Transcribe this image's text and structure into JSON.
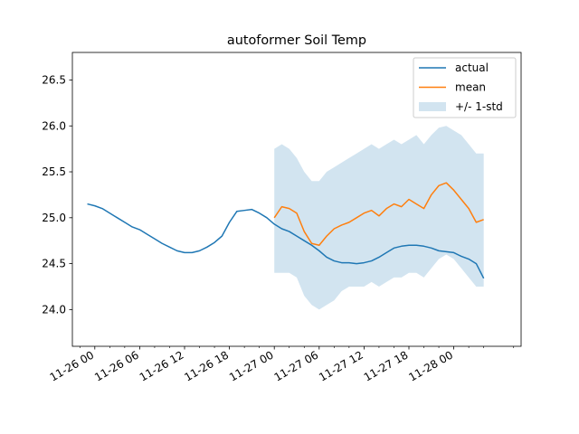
{
  "chart_data": {
    "type": "line",
    "title": "autoformer Soil Temp",
    "xlabel": "",
    "ylabel": "",
    "x_time_window": [
      "11-25 21:00",
      "11-28 09:00"
    ],
    "ylim": [
      23.6,
      26.8
    ],
    "y_ticks": [
      24.0,
      24.5,
      25.0,
      25.5,
      26.0,
      26.5
    ],
    "x_ticks": [
      "11-26 00",
      "11-26 06",
      "11-26 12",
      "11-26 18",
      "11-27 00",
      "11-27 06",
      "11-27 12",
      "11-27 18",
      "11-28 00"
    ],
    "legend": {
      "placement": "top-right"
    },
    "series": [
      {
        "name": "actual",
        "color": "#1f77b4",
        "x": [
          "11-25 23:00",
          "11-26 00:00",
          "11-26 01:00",
          "11-26 02:00",
          "11-26 03:00",
          "11-26 04:00",
          "11-26 05:00",
          "11-26 06:00",
          "11-26 07:00",
          "11-26 08:00",
          "11-26 09:00",
          "11-26 10:00",
          "11-26 11:00",
          "11-26 12:00",
          "11-26 13:00",
          "11-26 14:00",
          "11-26 15:00",
          "11-26 16:00",
          "11-26 17:00",
          "11-26 18:00",
          "11-26 19:00",
          "11-26 20:00",
          "11-26 21:00",
          "11-26 22:00",
          "11-26 23:00",
          "11-27 00:00",
          "11-27 01:00",
          "11-27 02:00",
          "11-27 03:00",
          "11-27 04:00",
          "11-27 05:00",
          "11-27 06:00",
          "11-27 07:00",
          "11-27 08:00",
          "11-27 09:00",
          "11-27 10:00",
          "11-27 11:00",
          "11-27 12:00",
          "11-27 13:00",
          "11-27 14:00",
          "11-27 15:00",
          "11-27 16:00",
          "11-27 17:00",
          "11-27 18:00",
          "11-27 19:00",
          "11-27 20:00",
          "11-27 21:00",
          "11-27 22:00",
          "11-27 23:00",
          "11-28 00:00",
          "11-28 01:00",
          "11-28 02:00",
          "11-28 03:00",
          "11-28 04:00"
        ],
        "values": [
          25.15,
          25.13,
          25.1,
          25.05,
          25.0,
          24.95,
          24.9,
          24.87,
          24.82,
          24.77,
          24.72,
          24.68,
          24.64,
          24.62,
          24.62,
          24.64,
          24.68,
          24.73,
          24.8,
          24.95,
          25.07,
          25.08,
          25.09,
          25.05,
          25.0,
          24.93,
          24.88,
          24.85,
          24.8,
          24.75,
          24.7,
          24.64,
          24.57,
          24.53,
          24.51,
          24.51,
          24.5,
          24.51,
          24.53,
          24.57,
          24.62,
          24.67,
          24.69,
          24.7,
          24.7,
          24.69,
          24.67,
          24.64,
          24.63,
          24.62,
          24.58,
          24.55,
          24.5,
          24.34
        ]
      },
      {
        "name": "mean",
        "color": "#ff7f0e",
        "x": [
          "11-27 00:00",
          "11-27 01:00",
          "11-27 02:00",
          "11-27 03:00",
          "11-27 04:00",
          "11-27 05:00",
          "11-27 06:00",
          "11-27 07:00",
          "11-27 08:00",
          "11-27 09:00",
          "11-27 10:00",
          "11-27 11:00",
          "11-27 12:00",
          "11-27 13:00",
          "11-27 14:00",
          "11-27 15:00",
          "11-27 16:00",
          "11-27 17:00",
          "11-27 18:00",
          "11-27 19:00",
          "11-27 20:00",
          "11-27 21:00",
          "11-27 22:00",
          "11-27 23:00",
          "11-28 00:00",
          "11-28 01:00",
          "11-28 02:00",
          "11-28 03:00",
          "11-28 04:00"
        ],
        "values": [
          25.0,
          25.12,
          25.1,
          25.05,
          24.85,
          24.72,
          24.7,
          24.8,
          24.88,
          24.92,
          24.95,
          25.0,
          25.05,
          25.08,
          25.02,
          25.1,
          25.15,
          25.12,
          25.2,
          25.15,
          25.1,
          25.25,
          25.35,
          25.38,
          25.3,
          25.2,
          25.1,
          24.95,
          24.98
        ]
      }
    ],
    "band": {
      "name": "+/- 1-std",
      "color": "#1f77b4",
      "opacity": 0.2,
      "x": [
        "11-27 00:00",
        "11-27 01:00",
        "11-27 02:00",
        "11-27 03:00",
        "11-27 04:00",
        "11-27 05:00",
        "11-27 06:00",
        "11-27 07:00",
        "11-27 08:00",
        "11-27 09:00",
        "11-27 10:00",
        "11-27 11:00",
        "11-27 12:00",
        "11-27 13:00",
        "11-27 14:00",
        "11-27 15:00",
        "11-27 16:00",
        "11-27 17:00",
        "11-27 18:00",
        "11-27 19:00",
        "11-27 20:00",
        "11-27 21:00",
        "11-27 22:00",
        "11-27 23:00",
        "11-28 00:00",
        "11-28 01:00",
        "11-28 02:00",
        "11-28 03:00",
        "11-28 04:00"
      ],
      "upper": [
        25.75,
        25.8,
        25.75,
        25.65,
        25.5,
        25.4,
        25.4,
        25.5,
        25.55,
        25.6,
        25.65,
        25.7,
        25.75,
        25.8,
        25.75,
        25.8,
        25.85,
        25.8,
        25.85,
        25.9,
        25.8,
        25.9,
        25.98,
        26.0,
        25.95,
        25.9,
        25.8,
        25.7,
        25.7
      ],
      "lower": [
        24.4,
        24.4,
        24.4,
        24.35,
        24.15,
        24.05,
        24.0,
        24.05,
        24.1,
        24.2,
        24.25,
        24.25,
        24.25,
        24.3,
        24.25,
        24.3,
        24.35,
        24.35,
        24.4,
        24.4,
        24.35,
        24.45,
        24.55,
        24.6,
        24.55,
        24.45,
        24.35,
        24.25,
        24.25
      ]
    }
  }
}
